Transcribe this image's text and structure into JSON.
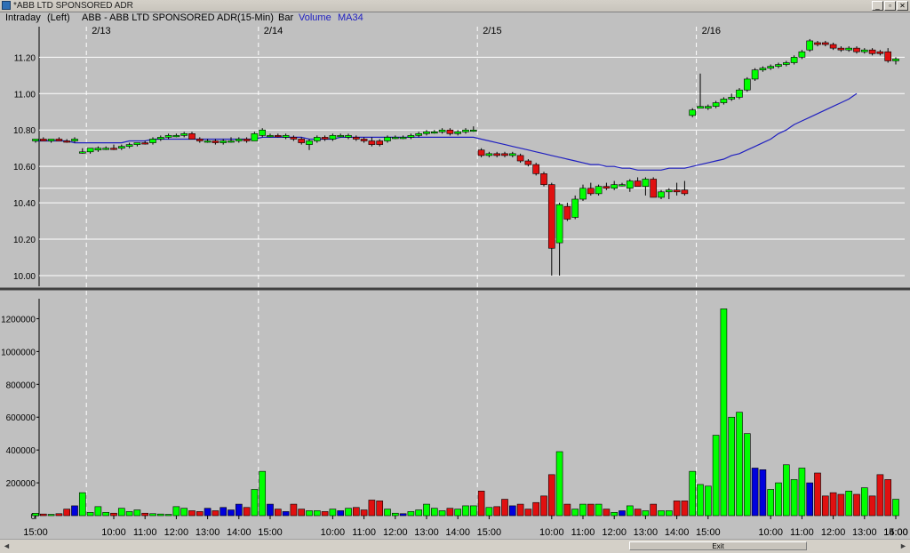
{
  "window": {
    "title": "*ABB LTD SPONSORED ADR",
    "min": "_",
    "max": "▫",
    "close": "✕"
  },
  "header": {
    "mode": "Intraday",
    "axis_side": "(Left)",
    "symbol": "ABB - ABB LTD SPONSORED ADR",
    "interval": "(15-Min)",
    "chart_style": "Bar",
    "volume_label": "Volume",
    "ma_label": "MA34"
  },
  "scrollbar": {
    "exit_label": "Exit",
    "left_arrow": "◄",
    "right_arrow": "►"
  },
  "colors": {
    "up": "#00ff00",
    "down": "#e01010",
    "neutral": "#0000dd",
    "ma": "#2020c0",
    "background": "#c0c0c0"
  },
  "chart_data": {
    "type": "candlestick",
    "symbol": "ABB - ABB LTD SPONSORED ADR",
    "interval": "15-Min",
    "price_axis": {
      "ticks": [
        "11.20",
        "11.00",
        "10.80",
        "10.60",
        "10.40",
        "10.20",
        "10.00"
      ],
      "ylim": [
        9.99,
        11.28
      ]
    },
    "volume_axis": {
      "ticks": [
        "1200000",
        "1000000",
        "800000",
        "600000",
        "400000",
        "200000",
        "0"
      ],
      "ylim": [
        0,
        1300000
      ]
    },
    "date_labels": [
      "2/13",
      "2/14",
      "2/15",
      "2/16"
    ],
    "time_labels": [
      "15:00",
      "10:00",
      "11:00",
      "12:00",
      "13:00",
      "14:00",
      "15:00",
      "10:00",
      "11:00",
      "12:00",
      "13:00",
      "14:00",
      "15:00",
      "10:00",
      "11:00",
      "12:00",
      "13:00",
      "14:00",
      "15:00",
      "10:00",
      "11:00",
      "12:00",
      "13:00",
      "14:00",
      "15:00"
    ],
    "reference_lines": [
      10.48
    ],
    "candles": [
      [
        10.74,
        10.75,
        10.73,
        10.75,
        14000,
        "u"
      ],
      [
        10.75,
        10.76,
        10.74,
        10.74,
        10000,
        "d"
      ],
      [
        10.74,
        10.75,
        10.73,
        10.75,
        8000,
        "u"
      ],
      [
        10.75,
        10.76,
        10.74,
        10.74,
        12000,
        "d"
      ],
      [
        10.74,
        10.75,
        10.73,
        10.74,
        40000,
        "d"
      ],
      [
        10.74,
        10.76,
        10.73,
        10.75,
        60000,
        "n"
      ],
      [
        10.68,
        10.7,
        10.67,
        10.68,
        140000,
        "u"
      ],
      [
        10.68,
        10.7,
        10.67,
        10.7,
        20000,
        "u"
      ],
      [
        10.69,
        10.71,
        10.68,
        10.7,
        55000,
        "u"
      ],
      [
        10.7,
        10.71,
        10.69,
        10.7,
        20000,
        "u"
      ],
      [
        10.7,
        10.72,
        10.69,
        10.7,
        15000,
        "d"
      ],
      [
        10.7,
        10.72,
        10.69,
        10.71,
        45000,
        "u"
      ],
      [
        10.71,
        10.73,
        10.7,
        10.72,
        25000,
        "u"
      ],
      [
        10.72,
        10.73,
        10.71,
        10.73,
        35000,
        "u"
      ],
      [
        10.73,
        10.74,
        10.72,
        10.73,
        15000,
        "d"
      ],
      [
        10.73,
        10.76,
        10.72,
        10.75,
        12000,
        "u"
      ],
      [
        10.75,
        10.77,
        10.74,
        10.76,
        10000,
        "u"
      ],
      [
        10.76,
        10.78,
        10.75,
        10.77,
        8000,
        "u"
      ],
      [
        10.77,
        10.78,
        10.76,
        10.77,
        55000,
        "u"
      ],
      [
        10.77,
        10.79,
        10.76,
        10.78,
        45000,
        "u"
      ],
      [
        10.78,
        10.79,
        10.75,
        10.75,
        30000,
        "d"
      ],
      [
        10.75,
        10.76,
        10.73,
        10.74,
        25000,
        "d"
      ],
      [
        10.74,
        10.75,
        10.73,
        10.74,
        45000,
        "n"
      ],
      [
        10.74,
        10.75,
        10.72,
        10.73,
        30000,
        "d"
      ],
      [
        10.73,
        10.75,
        10.72,
        10.74,
        50000,
        "n"
      ],
      [
        10.74,
        10.76,
        10.73,
        10.74,
        35000,
        "n"
      ],
      [
        10.74,
        10.76,
        10.73,
        10.75,
        70000,
        "n"
      ],
      [
        10.75,
        10.76,
        10.73,
        10.74,
        50000,
        "d"
      ],
      [
        10.74,
        10.79,
        10.74,
        10.78,
        160000,
        "u"
      ],
      [
        10.77,
        10.81,
        10.76,
        10.8,
        270000,
        "u"
      ],
      [
        10.77,
        10.78,
        10.76,
        10.77,
        70000,
        "n"
      ],
      [
        10.77,
        10.78,
        10.76,
        10.77,
        40000,
        "d"
      ],
      [
        10.77,
        10.78,
        10.75,
        10.76,
        25000,
        "n"
      ],
      [
        10.76,
        10.77,
        10.74,
        10.75,
        70000,
        "d"
      ],
      [
        10.75,
        10.76,
        10.72,
        10.73,
        40000,
        "d"
      ],
      [
        10.72,
        10.75,
        10.69,
        10.74,
        30000,
        "u"
      ],
      [
        10.74,
        10.77,
        10.73,
        10.76,
        30000,
        "u"
      ],
      [
        10.76,
        10.77,
        10.74,
        10.75,
        25000,
        "d"
      ],
      [
        10.75,
        10.78,
        10.74,
        10.77,
        40000,
        "u"
      ],
      [
        10.77,
        10.78,
        10.76,
        10.77,
        30000,
        "n"
      ],
      [
        10.77,
        10.78,
        10.75,
        10.76,
        45000,
        "u"
      ],
      [
        10.76,
        10.77,
        10.74,
        10.75,
        50000,
        "d"
      ],
      [
        10.75,
        10.76,
        10.73,
        10.74,
        35000,
        "d"
      ],
      [
        10.74,
        10.76,
        10.71,
        10.72,
        95000,
        "d"
      ],
      [
        10.72,
        10.75,
        10.71,
        10.74,
        90000,
        "d"
      ],
      [
        10.74,
        10.77,
        10.73,
        10.76,
        40000,
        "u"
      ],
      [
        10.76,
        10.77,
        10.75,
        10.76,
        15000,
        "u"
      ],
      [
        10.76,
        10.77,
        10.75,
        10.76,
        12000,
        "n"
      ],
      [
        10.76,
        10.78,
        10.75,
        10.77,
        25000,
        "u"
      ],
      [
        10.77,
        10.79,
        10.76,
        10.78,
        35000,
        "u"
      ],
      [
        10.78,
        10.8,
        10.77,
        10.79,
        70000,
        "u"
      ],
      [
        10.79,
        10.8,
        10.78,
        10.79,
        45000,
        "u"
      ],
      [
        10.79,
        10.81,
        10.78,
        10.8,
        30000,
        "u"
      ],
      [
        10.8,
        10.81,
        10.77,
        10.78,
        45000,
        "d"
      ],
      [
        10.78,
        10.8,
        10.77,
        10.79,
        40000,
        "u"
      ],
      [
        10.79,
        10.81,
        10.78,
        10.8,
        60000,
        "u"
      ],
      [
        10.8,
        10.82,
        10.79,
        10.8,
        60000,
        "u"
      ],
      [
        10.69,
        10.7,
        10.65,
        10.66,
        150000,
        "d"
      ],
      [
        10.66,
        10.68,
        10.65,
        10.67,
        50000,
        "u"
      ],
      [
        10.67,
        10.68,
        10.65,
        10.66,
        55000,
        "d"
      ],
      [
        10.66,
        10.68,
        10.65,
        10.67,
        100000,
        "d"
      ],
      [
        10.67,
        10.68,
        10.65,
        10.66,
        60000,
        "n"
      ],
      [
        10.66,
        10.67,
        10.62,
        10.63,
        70000,
        "d"
      ],
      [
        10.63,
        10.64,
        10.6,
        10.61,
        40000,
        "d"
      ],
      [
        10.61,
        10.62,
        10.55,
        10.56,
        80000,
        "d"
      ],
      [
        10.56,
        10.57,
        10.49,
        10.5,
        120000,
        "d"
      ],
      [
        10.5,
        10.51,
        10.0,
        10.15,
        250000,
        "d"
      ],
      [
        10.18,
        10.4,
        10.0,
        10.39,
        390000,
        "u"
      ],
      [
        10.38,
        10.4,
        10.3,
        10.31,
        70000,
        "d"
      ],
      [
        10.32,
        10.44,
        10.31,
        10.42,
        40000,
        "u"
      ],
      [
        10.42,
        10.5,
        10.41,
        10.48,
        70000,
        "u"
      ],
      [
        10.48,
        10.51,
        10.44,
        10.45,
        70000,
        "d"
      ],
      [
        10.45,
        10.5,
        10.44,
        10.49,
        70000,
        "u"
      ],
      [
        10.49,
        10.51,
        10.47,
        10.48,
        40000,
        "d"
      ],
      [
        10.48,
        10.52,
        10.47,
        10.5,
        20000,
        "u"
      ],
      [
        10.5,
        10.51,
        10.49,
        10.5,
        30000,
        "n"
      ],
      [
        10.48,
        10.53,
        10.46,
        10.52,
        60000,
        "u"
      ],
      [
        10.52,
        10.54,
        10.49,
        10.49,
        40000,
        "d"
      ],
      [
        10.49,
        10.54,
        10.44,
        10.53,
        30000,
        "u"
      ],
      [
        10.53,
        10.54,
        10.43,
        10.43,
        70000,
        "d"
      ],
      [
        10.43,
        10.47,
        10.42,
        10.46,
        30000,
        "u"
      ],
      [
        10.46,
        10.48,
        10.42,
        10.47,
        30000,
        "u"
      ],
      [
        10.46,
        10.51,
        10.44,
        10.47,
        90000,
        "d"
      ],
      [
        10.47,
        10.52,
        10.44,
        10.45,
        90000,
        "d"
      ],
      [
        10.88,
        10.92,
        10.87,
        10.91,
        270000,
        "u"
      ],
      [
        10.92,
        11.11,
        10.92,
        10.93,
        190000,
        "u"
      ],
      [
        10.92,
        10.94,
        10.91,
        10.93,
        180000,
        "u"
      ],
      [
        10.93,
        10.96,
        10.92,
        10.95,
        490000,
        "u"
      ],
      [
        10.95,
        10.98,
        10.94,
        10.97,
        1260000,
        "u"
      ],
      [
        10.97,
        11.0,
        10.96,
        10.98,
        600000,
        "u"
      ],
      [
        10.98,
        11.03,
        10.97,
        11.02,
        630000,
        "u"
      ],
      [
        11.02,
        11.09,
        11.01,
        11.08,
        500000,
        "u"
      ],
      [
        11.08,
        11.14,
        11.07,
        11.13,
        290000,
        "n"
      ],
      [
        11.13,
        11.15,
        11.12,
        11.14,
        280000,
        "n"
      ],
      [
        11.14,
        11.16,
        11.13,
        11.15,
        160000,
        "u"
      ],
      [
        11.15,
        11.17,
        11.14,
        11.16,
        200000,
        "u"
      ],
      [
        11.16,
        11.18,
        11.15,
        11.17,
        310000,
        "u"
      ],
      [
        11.17,
        11.21,
        11.16,
        11.2,
        220000,
        "u"
      ],
      [
        11.2,
        11.24,
        11.19,
        11.23,
        290000,
        "u"
      ],
      [
        11.24,
        11.3,
        11.23,
        11.29,
        200000,
        "n"
      ],
      [
        11.27,
        11.29,
        11.26,
        11.28,
        260000,
        "d"
      ],
      [
        11.28,
        11.29,
        11.26,
        11.27,
        120000,
        "d"
      ],
      [
        11.27,
        11.28,
        11.24,
        11.25,
        140000,
        "d"
      ],
      [
        11.25,
        11.26,
        11.23,
        11.24,
        130000,
        "d"
      ],
      [
        11.24,
        11.26,
        11.23,
        11.25,
        150000,
        "u"
      ],
      [
        11.25,
        11.26,
        11.22,
        11.23,
        130000,
        "d"
      ],
      [
        11.23,
        11.25,
        11.22,
        11.24,
        170000,
        "u"
      ],
      [
        11.24,
        11.25,
        11.21,
        11.22,
        120000,
        "d"
      ],
      [
        11.22,
        11.24,
        11.21,
        11.23,
        250000,
        "d"
      ],
      [
        11.23,
        11.25,
        11.17,
        11.18,
        220000,
        "d"
      ],
      [
        11.18,
        11.2,
        11.16,
        11.19,
        100000,
        "u"
      ]
    ],
    "ma34": [
      10.74,
      10.74,
      10.74,
      10.74,
      10.74,
      10.73,
      10.73,
      10.73,
      10.73,
      10.73,
      10.73,
      10.73,
      10.74,
      10.74,
      10.74,
      10.75,
      10.75,
      10.75,
      10.75,
      10.75,
      10.75,
      10.75,
      10.75,
      10.75,
      10.75,
      10.75,
      10.75,
      10.75,
      10.75,
      10.76,
      10.76,
      10.76,
      10.76,
      10.76,
      10.76,
      10.75,
      10.75,
      10.75,
      10.75,
      10.76,
      10.76,
      10.76,
      10.76,
      10.76,
      10.76,
      10.76,
      10.76,
      10.76,
      10.76,
      10.76,
      10.76,
      10.76,
      10.76,
      10.76,
      10.76,
      10.76,
      10.76,
      10.75,
      10.74,
      10.73,
      10.72,
      10.71,
      10.7,
      10.69,
      10.68,
      10.67,
      10.66,
      10.65,
      10.64,
      10.63,
      10.62,
      10.61,
      10.61,
      10.6,
      10.6,
      10.59,
      10.59,
      10.58,
      10.58,
      10.58,
      10.58,
      10.59,
      10.59,
      10.59,
      10.6,
      10.61,
      10.62,
      10.63,
      10.64,
      10.66,
      10.67,
      10.69,
      10.71,
      10.73,
      10.75,
      10.78,
      10.8,
      10.83,
      10.85,
      10.87,
      10.89,
      10.91,
      10.93,
      10.95,
      10.97,
      11.0
    ]
  }
}
